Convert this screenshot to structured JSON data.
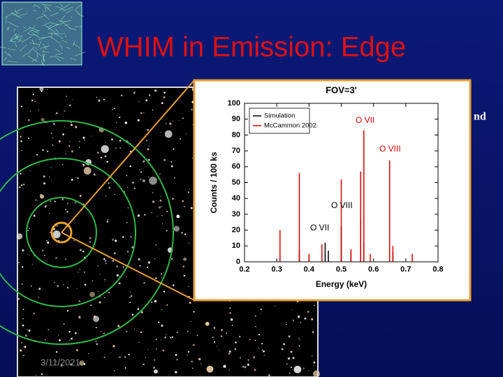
{
  "slide": {
    "title": "WHIM in Emission: Edge",
    "fragment": "nd",
    "date": "3/11/2021"
  },
  "chart_data": {
    "type": "spikes",
    "title": "FOV=3'",
    "x_label": "Energy (keV)",
    "y_label": "Counts / 100 ks",
    "xlim": [
      0.2,
      0.8
    ],
    "xticks": [
      0.2,
      0.3,
      0.4,
      0.5,
      0.6,
      0.7,
      0.8
    ],
    "ylim": [
      0,
      100
    ],
    "yticks": [
      0,
      10,
      20,
      30,
      40,
      50,
      60,
      70,
      80,
      90,
      100
    ],
    "legend": "upper left",
    "series": [
      {
        "name": "Simulation",
        "color": "#000000",
        "x": [
          0.31,
          0.37,
          0.4,
          0.45,
          0.46,
          0.5,
          0.53,
          0.56,
          0.57,
          0.65,
          0.66
        ],
        "values": [
          5,
          8,
          4,
          12,
          7,
          22,
          6,
          27,
          12,
          30,
          6
        ]
      },
      {
        "name": "McCammon 2002",
        "color": "#e00000",
        "x": [
          0.31,
          0.37,
          0.4,
          0.44,
          0.5,
          0.53,
          0.56,
          0.57,
          0.59,
          0.65,
          0.66,
          0.72
        ],
        "values": [
          20,
          56,
          5,
          11,
          52,
          8,
          57,
          83,
          5,
          64,
          10,
          5
        ]
      }
    ],
    "annotations": [
      {
        "text": "O VII",
        "color": "#e00000"
      },
      {
        "text": "O VIII",
        "color": "#e00000"
      },
      {
        "text": "O VIII",
        "color": "#000000"
      },
      {
        "text": "O VII",
        "color": "#000000"
      }
    ]
  }
}
